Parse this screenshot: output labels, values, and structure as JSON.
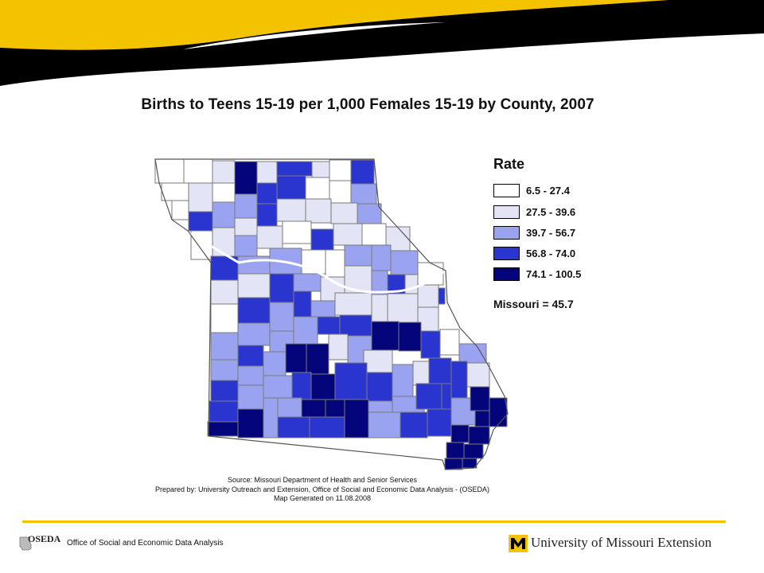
{
  "title": "Births to Teens 15-19 per 1,000 Females 15-19 by County, 2007",
  "legend": {
    "title": "Rate",
    "classes": [
      {
        "label": "6.5 - 27.4",
        "color": "#ffffff"
      },
      {
        "label": "27.5 - 39.6",
        "color": "#e4e4f7"
      },
      {
        "label": "39.7 - 56.7",
        "color": "#9aa3ef"
      },
      {
        "label": "56.8 - 74.0",
        "color": "#2a35d0"
      },
      {
        "label": "74.1 - 100.5",
        "color": "#04057a"
      }
    ]
  },
  "state_average": "Missouri = 45.7",
  "source": {
    "line1": "Source:  Missouri Department of Health and Senior Services",
    "line2": "Prepared by: University Outreach and Extension, Office of Social and Economic Data Analysis - (OSEDA)",
    "line3": "Map Generated on 11.08.2008"
  },
  "footer": {
    "oseda_word": "OSEDA",
    "office_name": "Office of Social and Economic Data Analysis",
    "university_name": "University of Missouri Extension"
  },
  "colors": {
    "banner_black": "#000000",
    "banner_gold": "#f3c300",
    "county_border": "#7a7a7a"
  }
}
